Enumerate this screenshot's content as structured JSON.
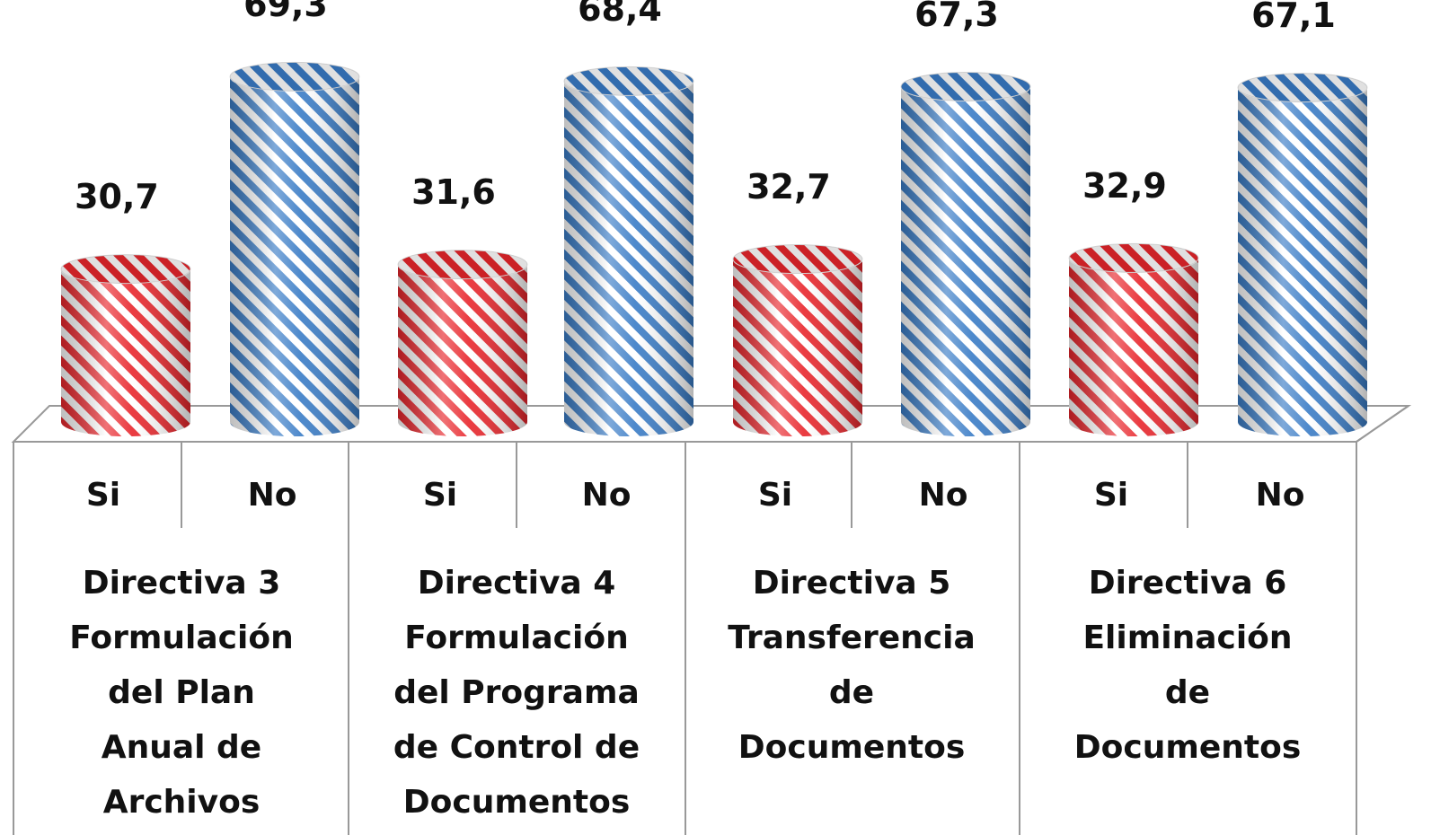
{
  "chart_data": {
    "type": "bar",
    "categories": [
      "Si",
      "No",
      "Si",
      "No",
      "Si",
      "No",
      "Si",
      "No"
    ],
    "values": [
      30.7,
      69.3,
      31.6,
      68.4,
      32.7,
      67.3,
      32.9,
      67.1
    ],
    "value_labels": [
      "30,7",
      "69,3",
      "31,6",
      "68,4",
      "32,7",
      "67,3",
      "32,9",
      "67,1"
    ],
    "colors": [
      "#e8262c",
      "#3a7cc6",
      "#e8262c",
      "#3a7cc6",
      "#e8262c",
      "#3a7cc6",
      "#e8262c",
      "#3a7cc6"
    ],
    "groups": [
      [
        "Directiva 3",
        "Formulación",
        "del Plan",
        "Anual de",
        "Archivos"
      ],
      [
        "Directiva 4",
        "Formulación",
        "del Programa",
        "de Control de",
        "Documentos"
      ],
      [
        "Directiva 5",
        "Transferencia",
        "de",
        "Documentos"
      ],
      [
        "Directiva 6",
        "Eliminación",
        "de",
        "Documentos"
      ]
    ]
  }
}
